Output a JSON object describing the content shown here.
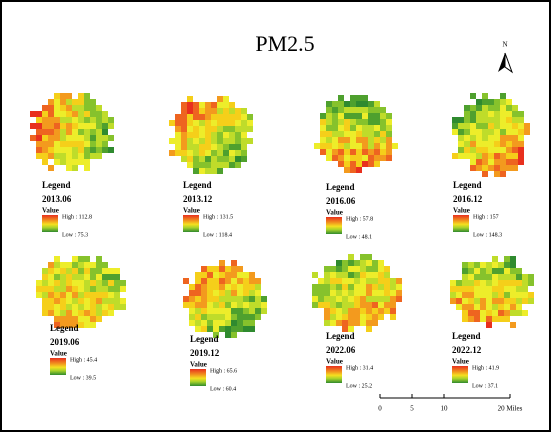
{
  "title": "PM2.5",
  "north_arrow": "N",
  "panels": [
    {
      "legend": "Legend",
      "date": "2013.06",
      "field": "Value",
      "high": "High : 112.8",
      "low": "Low : 75.3"
    },
    {
      "legend": "Legend",
      "date": "2013.12",
      "field": "Value",
      "high": "High : 131.5",
      "low": "Low : 118.4"
    },
    {
      "legend": "Legend",
      "date": "2016.06",
      "field": "Value",
      "high": "High : 57.8",
      "low": "Low : 48.1"
    },
    {
      "legend": "Legend",
      "date": "2016.12",
      "field": "Value",
      "high": "High : 157",
      "low": "Low : 148.3"
    },
    {
      "legend": "Legend",
      "date": "2019.06",
      "field": "Value",
      "high": "High : 45.4",
      "low": "Low : 39.5"
    },
    {
      "legend": "Legend",
      "date": "2019.12",
      "field": "Value",
      "high": "High : 65.6",
      "low": "Low : 60.4"
    },
    {
      "legend": "Legend",
      "date": "2022.06",
      "field": "Value",
      "high": "High : 31.4",
      "low": "Low : 25.2"
    },
    {
      "legend": "Legend",
      "date": "2022.12",
      "field": "Value",
      "high": "High : 41.9",
      "low": "Low : 37.1"
    }
  ],
  "scale_bar": {
    "labels": [
      "0",
      "5",
      "10",
      "20 Miles"
    ]
  }
}
